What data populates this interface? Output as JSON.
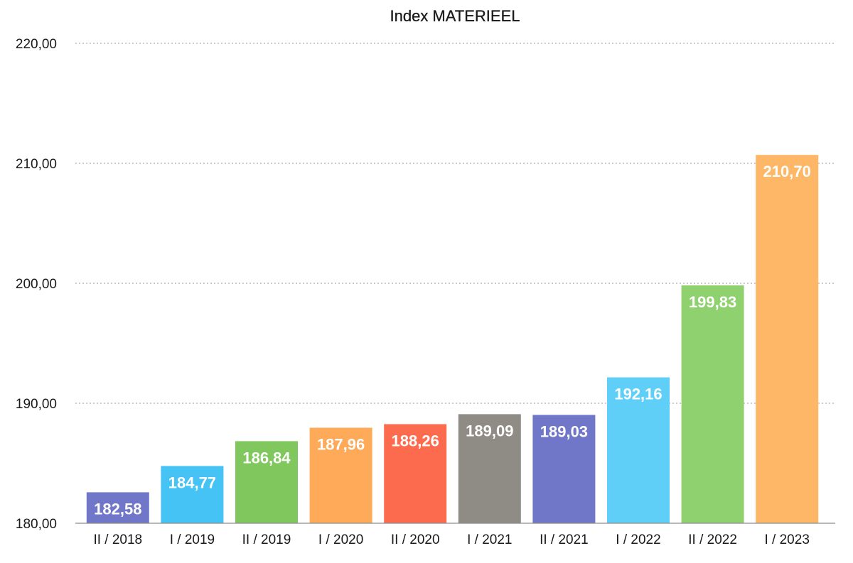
{
  "chart_data": {
    "type": "bar",
    "title": "Index MATERIEEL",
    "xlabel": "",
    "ylabel": "",
    "ylim": [
      180,
      220
    ],
    "yticks": [
      "180,00",
      "190,00",
      "200,00",
      "210,00",
      "220,00"
    ],
    "ytick_values": [
      180,
      190,
      200,
      210,
      220
    ],
    "grid": "horizontal dotted",
    "legend": "none",
    "categories": [
      "II / 2018",
      "I / 2019",
      "II / 2019",
      "I / 2020",
      "II / 2020",
      "I / 2021",
      "II / 2021",
      "I / 2022",
      "II / 2022",
      "I / 2023"
    ],
    "values": [
      182.58,
      184.77,
      186.84,
      187.96,
      188.26,
      189.09,
      189.03,
      192.16,
      199.83,
      210.7
    ],
    "value_labels": [
      "182,58",
      "184,77",
      "186,84",
      "187,96",
      "188,26",
      "189,09",
      "189,03",
      "192,16",
      "199,83",
      "210,70"
    ],
    "colors": [
      "#7077c8",
      "#45c3f5",
      "#80c75e",
      "#feaa58",
      "#fd6b4f",
      "#8f8b85",
      "#7077c8",
      "#60cff8",
      "#90d16f",
      "#feb767"
    ]
  }
}
